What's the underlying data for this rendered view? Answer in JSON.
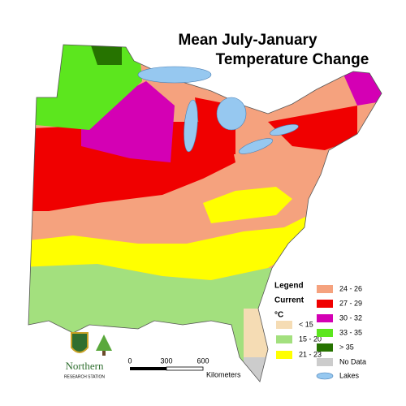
{
  "title": [
    "Mean July-January",
    "Temperature Change"
  ],
  "legend": {
    "title": "Legend",
    "subtitle": "Current",
    "unit": "°C",
    "items": [
      {
        "label": "< 15",
        "color": "#f5dcb4"
      },
      {
        "label": "15 - 20",
        "color": "#a3e07e"
      },
      {
        "label": "21 - 23",
        "color": "#ffff00"
      },
      {
        "label": "24 - 26",
        "color": "#f5a27e"
      },
      {
        "label": "27 - 29",
        "color": "#f00000"
      },
      {
        "label": "30 - 32",
        "color": "#d400b4"
      },
      {
        "label": "33 - 35",
        "color": "#5ce61e"
      },
      {
        "label": "> 35",
        "color": "#267300"
      },
      {
        "label": "No Data",
        "color": "#cccccc"
      },
      {
        "label": "Lakes",
        "color": "#96c8f0"
      }
    ]
  },
  "scale": {
    "labels": [
      "0",
      "300",
      "600"
    ],
    "unit": "Kilometers"
  },
  "logo": {
    "name": "Northern",
    "subname": "RESEARCH STATION"
  }
}
